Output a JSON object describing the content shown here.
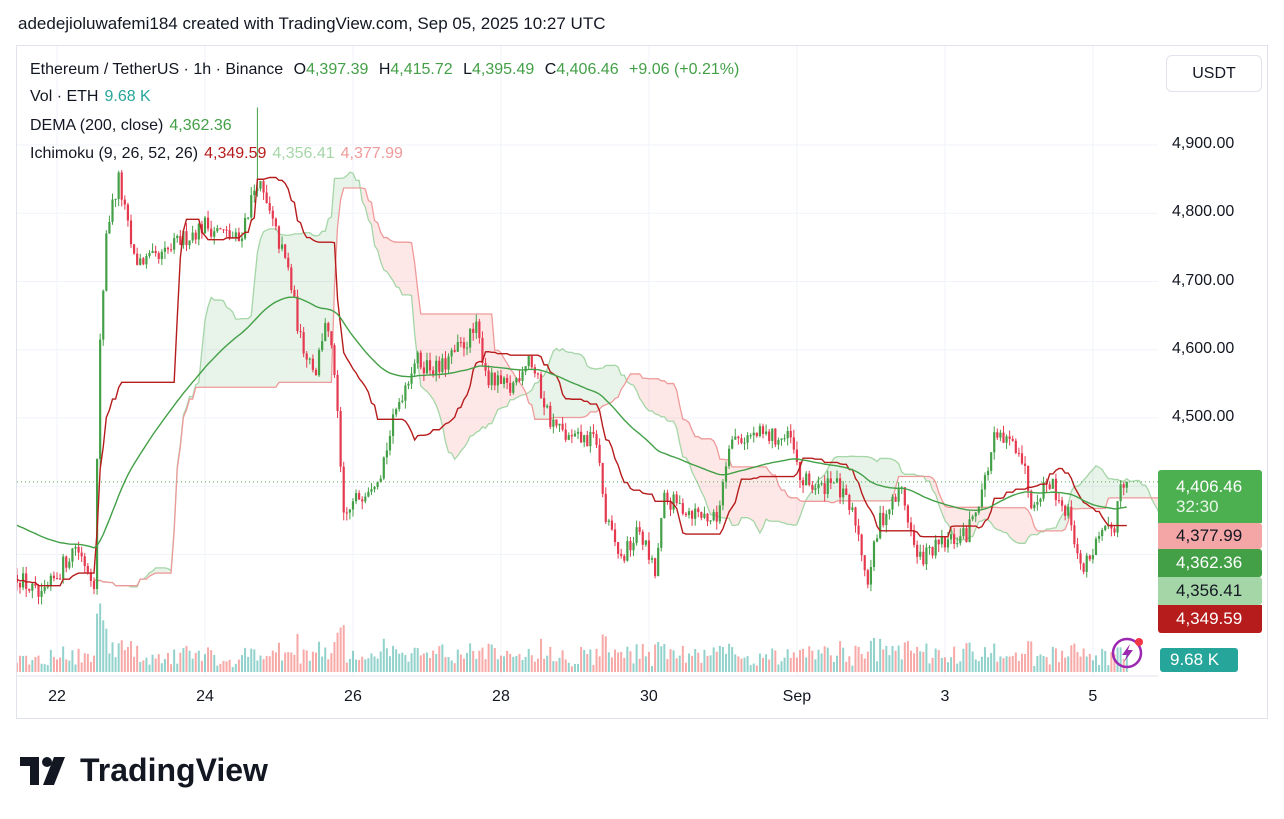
{
  "caption": "adedejioluwafemi184 created with TradingView.com, Sep 05, 2025 10:27 UTC",
  "legend": {
    "symbol": "Ethereum / TetherUS · 1h · Binance",
    "o_label": "O",
    "open": "4,397.39",
    "h_label": "H",
    "high": "4,415.72",
    "l_label": "L",
    "low": "4,395.49",
    "c_label": "C",
    "close": "4,406.46",
    "change": "+9.06 (+0.21%)",
    "vol_label": "Vol · ETH",
    "vol": "9.68 K",
    "dema_label": "DEMA (200, close)",
    "dema": "4,362.36",
    "ichi_label": "Ichimoku (9, 26, 52, 26)",
    "ichi1": "4,349.59",
    "ichi2": "4,356.41",
    "ichi3": "4,377.99"
  },
  "currency_button": "USDT",
  "price_tags": {
    "last": "4,406.46",
    "countdown": "32:30",
    "ichi_b": "4,377.99",
    "dema": "4,362.36",
    "ichi_a": "4,356.41",
    "ichi_base": "4,349.59",
    "volume": "9.68 K"
  },
  "logo_text": "TradingView",
  "colors": {
    "up": "#26a69a",
    "candle_up": "#43a047",
    "down": "#e53950",
    "dema": "#43a047",
    "base": "#b71c1c",
    "span_a": "#a5d6a7",
    "span_b": "#ef9a9a"
  },
  "chart_data": {
    "type": "candlestick",
    "title": "Ethereum / TetherUS · 1h · Binance",
    "x_unit": "hours from Aug 22 00:00 UTC",
    "x_ticks": [
      {
        "h": 0,
        "label": "22"
      },
      {
        "h": 48,
        "label": "24"
      },
      {
        "h": 96,
        "label": "26"
      },
      {
        "h": 144,
        "label": "28"
      },
      {
        "h": 192,
        "label": "30"
      },
      {
        "h": 240,
        "label": "Sep"
      },
      {
        "h": 288,
        "label": "3"
      },
      {
        "h": 336,
        "label": "5"
      }
    ],
    "y_ticks": [
      {
        "v": 4900,
        "label": "4,900.00"
      },
      {
        "v": 4800,
        "label": "4,800.00"
      },
      {
        "v": 4700,
        "label": "4,700.00"
      },
      {
        "v": 4600,
        "label": "4,600.00"
      },
      {
        "v": 4500,
        "label": "4,500.00"
      }
    ],
    "ylim": [
      4197,
      5039
    ],
    "close_path": [
      [
        -13,
        4270
      ],
      [
        -5,
        4233
      ],
      [
        6,
        4314
      ],
      [
        12,
        4263
      ],
      [
        14,
        4607
      ],
      [
        16,
        4775
      ],
      [
        20,
        4849
      ],
      [
        25,
        4731
      ],
      [
        28,
        4731
      ],
      [
        33,
        4731
      ],
      [
        40,
        4760
      ],
      [
        48,
        4783
      ],
      [
        59,
        4760
      ],
      [
        65,
        4849
      ],
      [
        69,
        4797
      ],
      [
        75,
        4717
      ],
      [
        79,
        4614
      ],
      [
        84,
        4570
      ],
      [
        87,
        4644
      ],
      [
        90,
        4570
      ],
      [
        93,
        4350
      ],
      [
        97,
        4380
      ],
      [
        105,
        4424
      ],
      [
        111,
        4526
      ],
      [
        116,
        4585
      ],
      [
        124,
        4570
      ],
      [
        136,
        4629
      ],
      [
        140,
        4556
      ],
      [
        147,
        4541
      ],
      [
        153,
        4592
      ],
      [
        160,
        4497
      ],
      [
        166,
        4468
      ],
      [
        175,
        4468
      ],
      [
        178,
        4350
      ],
      [
        183,
        4292
      ],
      [
        189,
        4336
      ],
      [
        194,
        4270
      ],
      [
        197,
        4380
      ],
      [
        205,
        4365
      ],
      [
        214,
        4350
      ],
      [
        218,
        4468
      ],
      [
        228,
        4475
      ],
      [
        238,
        4468
      ],
      [
        241,
        4409
      ],
      [
        248,
        4395
      ],
      [
        251,
        4416
      ],
      [
        259,
        4350
      ],
      [
        263,
        4263
      ],
      [
        267,
        4350
      ],
      [
        274,
        4395
      ],
      [
        279,
        4292
      ],
      [
        287,
        4314
      ],
      [
        295,
        4329
      ],
      [
        301,
        4409
      ],
      [
        304,
        4468
      ],
      [
        312,
        4460
      ],
      [
        316,
        4380
      ],
      [
        322,
        4409
      ],
      [
        329,
        4350
      ],
      [
        332,
        4277
      ],
      [
        337,
        4314
      ],
      [
        343,
        4343
      ],
      [
        345,
        4409
      ],
      [
        347,
        4406.46
      ]
    ],
    "spike_high": {
      "h": 65,
      "v": 4955
    },
    "last_price": 4406.46,
    "indicators": [
      "Volume",
      "DEMA (200, close)",
      "Ichimoku (9, 26, 52, 26)"
    ]
  }
}
